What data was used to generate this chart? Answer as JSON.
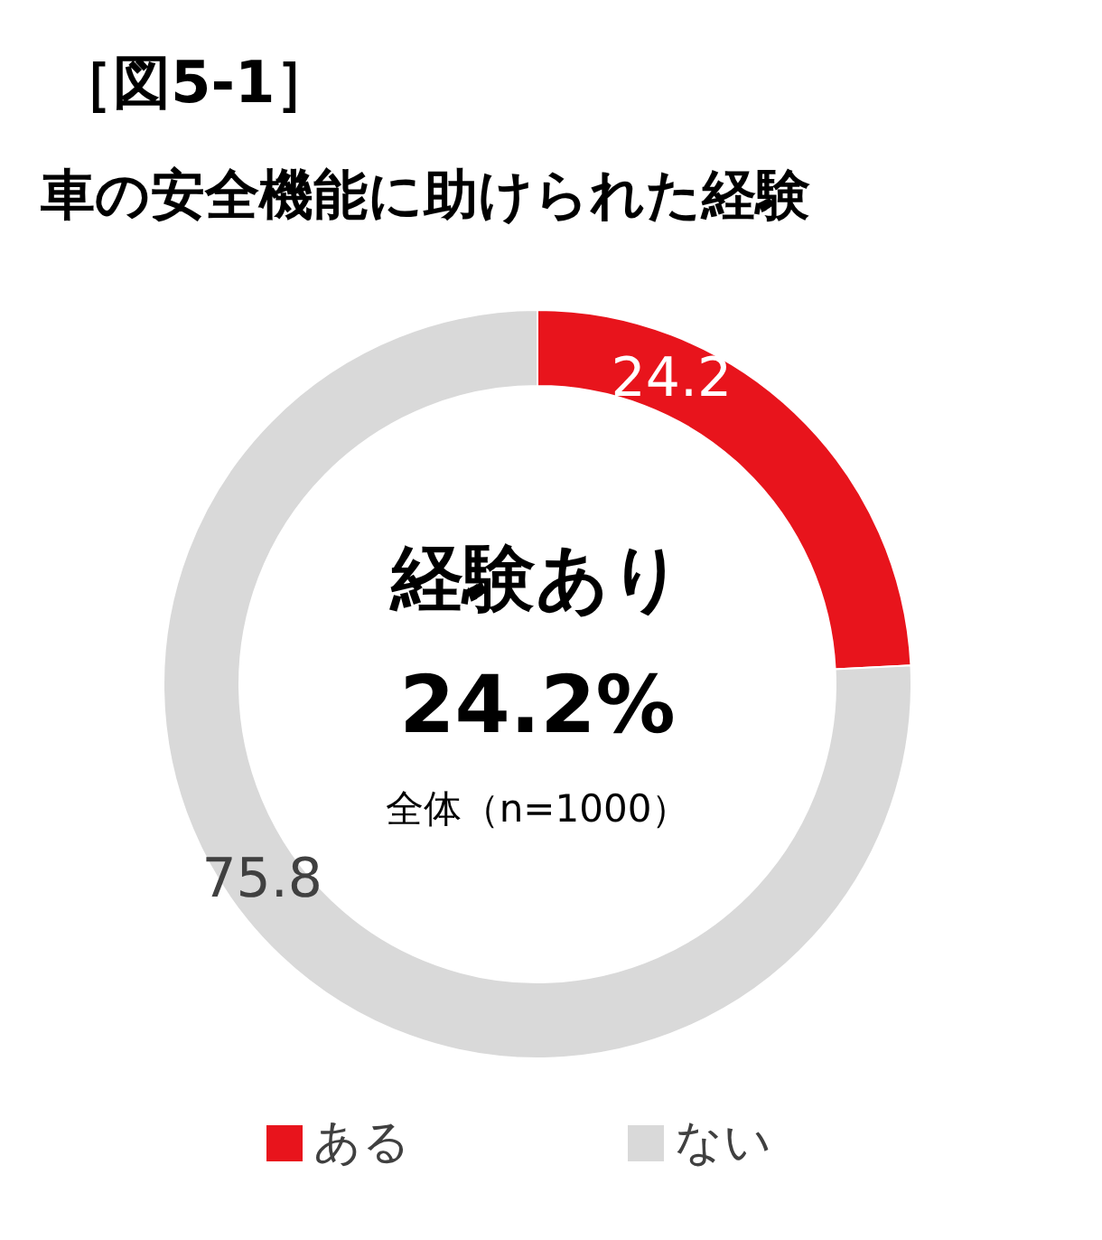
{
  "chart_data": {
    "type": "donut",
    "title": "［図5-1］",
    "subtitle": "車の安全機能に助けられた経験",
    "categories": [
      "ある",
      "ない"
    ],
    "values": [
      24.2,
      75.8
    ],
    "colors": [
      "#e8141c",
      "#d9d9d9"
    ],
    "data_labels": true,
    "legend": "bottom",
    "annotations": [
      "経験あり",
      "24.2%",
      "全体（n=1000）"
    ]
  }
}
